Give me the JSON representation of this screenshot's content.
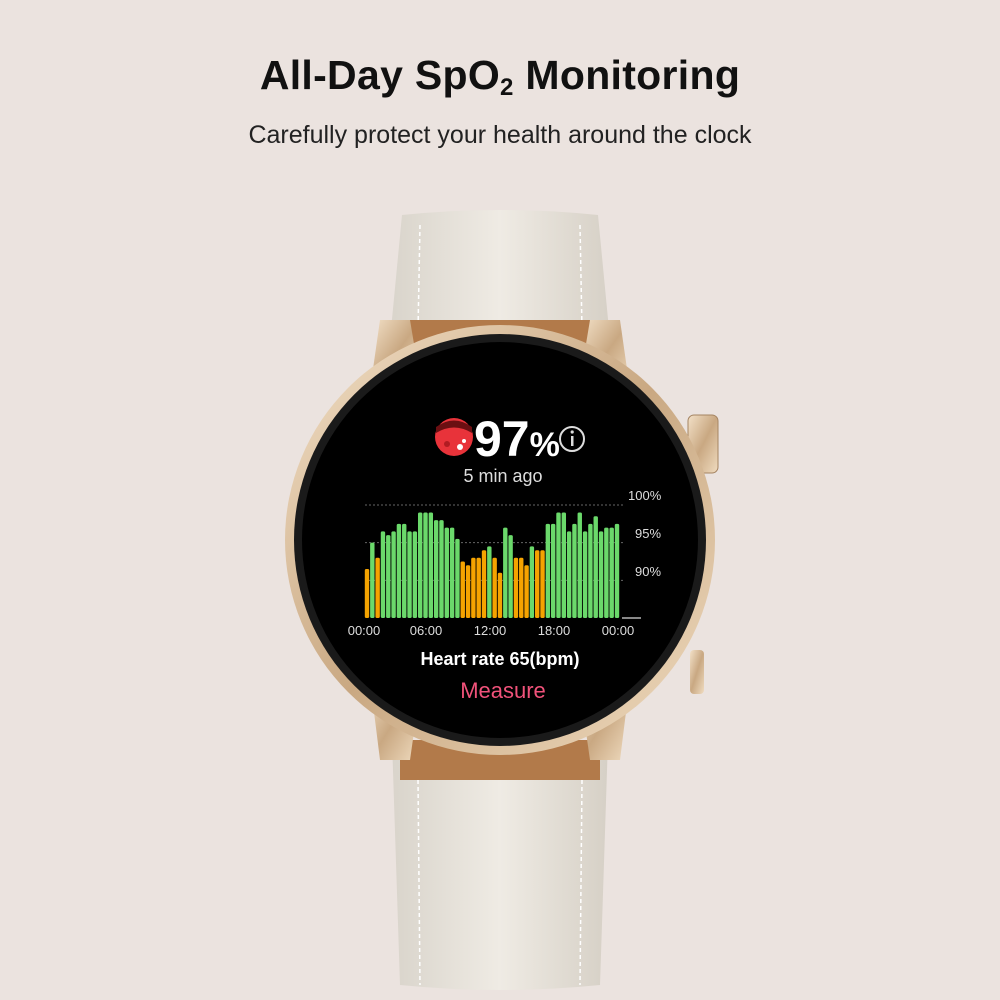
{
  "header": {
    "title_main": "All-Day SpO",
    "title_sub": "2",
    "title_end": " Monitoring",
    "subtitle": "Carefully protect your health around the clock"
  },
  "watch": {
    "spo2_value": "97",
    "spo2_unit": "%",
    "icon": "blood-oxygen-icon",
    "info_icon": "info-icon",
    "last_measured": "5 min ago",
    "heart_rate": "Heart rate 65(bpm)",
    "measure_label": "Measure",
    "measure_color": "#f0527a"
  },
  "chart_data": {
    "type": "bar",
    "x_tick_labels": [
      "00:00",
      "06:00",
      "12:00",
      "18:00",
      "00:00"
    ],
    "y_tick_labels": [
      "100%",
      "95%",
      "90%"
    ],
    "y_ticks": [
      100,
      95,
      90
    ],
    "ylim": [
      85,
      100
    ],
    "grid": "dashed horizontal",
    "interval_minutes": 30,
    "colors": {
      "normal": "#6bd96b",
      "low": "#f5a300"
    },
    "low_threshold": 94.5,
    "values": [
      91.5,
      95,
      93,
      96.5,
      96,
      96.5,
      97.5,
      97.5,
      96.5,
      96.5,
      99,
      99,
      99,
      98,
      98,
      97,
      97,
      95.5,
      92.5,
      92,
      93,
      93,
      94,
      94.5,
      93,
      91,
      97,
      96,
      93,
      93,
      92,
      94.5,
      94,
      94,
      97.5,
      97.5,
      99,
      99,
      96.5,
      97.5,
      99,
      96.5,
      97.5,
      98.5,
      96.5,
      97,
      97,
      97.5
    ]
  }
}
